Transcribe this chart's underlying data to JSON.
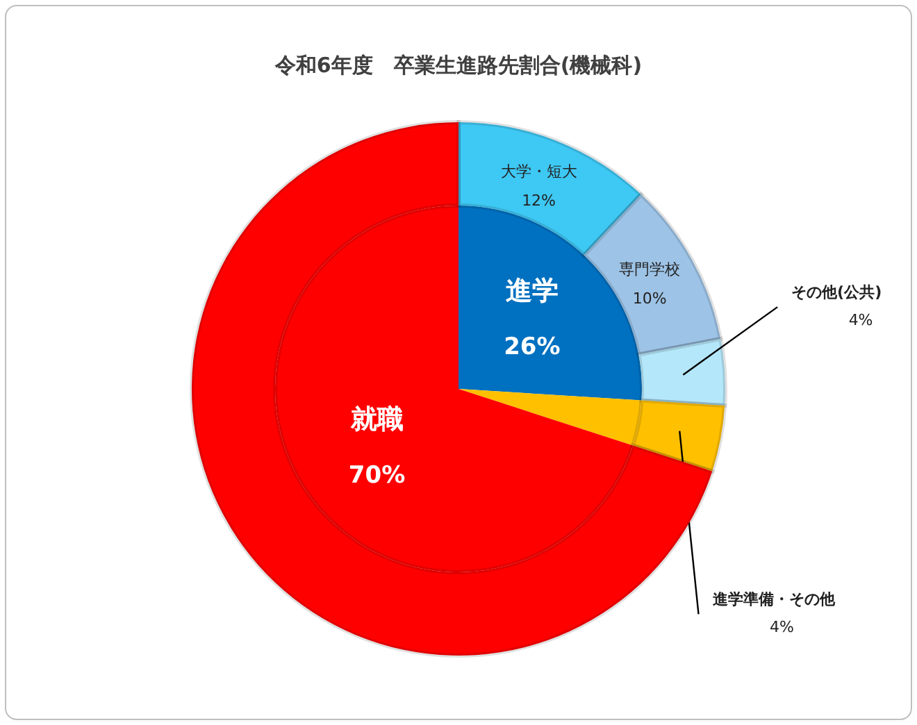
{
  "chart_data": [
    {
      "type": "pie",
      "title": "令和6年度　卒業生進路先割合(機械科)",
      "categories": [
        "進学",
        null,
        "就職"
      ],
      "values": [
        26,
        4,
        70
      ],
      "colors": [
        "#0070c0",
        "#ffc000",
        "#ff0000"
      ],
      "value_labels": [
        "26%",
        null,
        "70%"
      ]
    },
    {
      "type": "donut",
      "categories": [
        "大学・短大",
        "専門学校",
        "その他(公共)",
        "進学準備・その他",
        null
      ],
      "values": [
        12,
        10,
        4,
        4,
        70
      ],
      "colors": [
        "#3ec8f4",
        "#9dc3e6",
        "#b4e7fa",
        "#ffc000",
        "#ff0000"
      ],
      "value_labels": [
        "12%",
        "10%",
        "4%",
        "4%",
        null
      ]
    }
  ]
}
